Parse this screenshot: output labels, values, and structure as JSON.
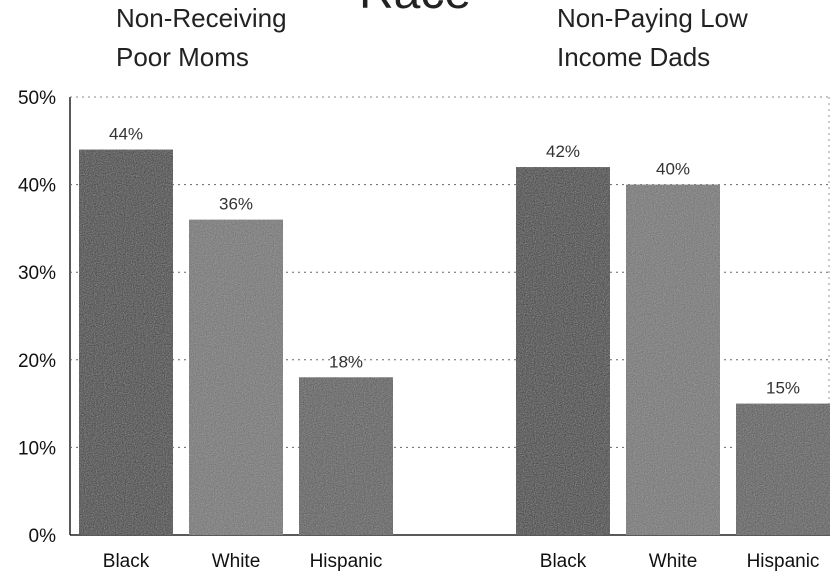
{
  "chart_data": {
    "type": "bar",
    "title": "Race",
    "ylim": [
      0,
      50
    ],
    "yticks": [
      "0%",
      "10%",
      "20%",
      "30%",
      "40%",
      "50%"
    ],
    "grid": true,
    "groups": [
      {
        "title_lines": [
          "Non-Receiving",
          "Poor Moms"
        ],
        "categories": [
          "Black",
          "White",
          "Hispanic"
        ],
        "values": [
          44,
          36,
          18
        ],
        "labels": [
          "44%",
          "36%",
          "18%"
        ]
      },
      {
        "title_lines": [
          "Non-Paying Low",
          "Income Dads"
        ],
        "categories": [
          "Black",
          "White",
          "Hispanic"
        ],
        "values": [
          42,
          40,
          15
        ],
        "labels": [
          "42%",
          "40%",
          "15%"
        ]
      }
    ],
    "colors": {
      "Black": "#2e2e2e",
      "White": "#6a6a6a",
      "Hispanic": "#4f4f4f",
      "grid": "#666666",
      "axis": "#222222"
    }
  }
}
